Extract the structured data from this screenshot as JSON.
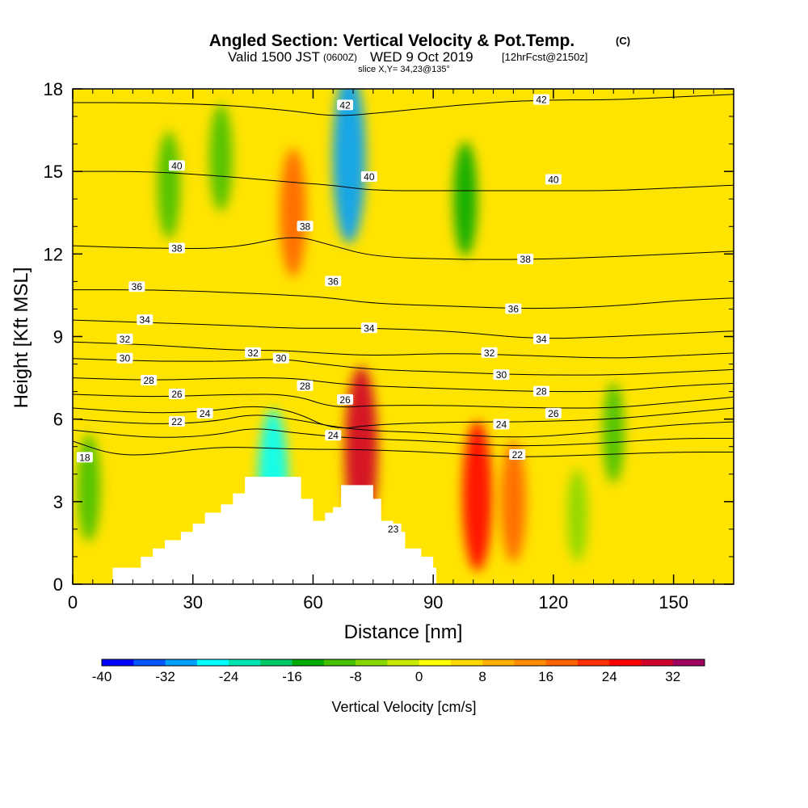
{
  "title": {
    "line1": "Angled Section: Vertical Velocity & Pot.Temp.",
    "line1_unit": "(C)",
    "line2_prefix": "Valid 1500 JST",
    "line2_zulu": "(0600Z)",
    "line2_date": "WED 9 Oct 2019",
    "line2_fcst": "[12hrFcst@2150z]",
    "line3": "slice X,Y= 34,23@135°"
  },
  "chart_data": {
    "type": "heatmap",
    "title": "Angled Section: Vertical Velocity & Pot.Temp. (C)",
    "xlabel": "Distance [nm]",
    "ylabel": "Height [Kft MSL]",
    "xlim": [
      0,
      165
    ],
    "ylim": [
      0,
      18
    ],
    "x_ticks": [
      "0",
      "30",
      "60",
      "90",
      "120",
      "150"
    ],
    "y_ticks": [
      "0",
      "3",
      "6",
      "9",
      "12",
      "15",
      "18"
    ],
    "colorbar": {
      "label": "Vertical Velocity [cm/s]",
      "ticks": [
        "-40",
        "-32",
        "-24",
        "-16",
        "-8",
        "0",
        "8",
        "16",
        "24",
        "32"
      ],
      "min": -40,
      "max": 36,
      "step": 4,
      "colors": [
        "#0000ff",
        "#0055ff",
        "#00a0ff",
        "#00ffff",
        "#00e6b0",
        "#00c864",
        "#00aa00",
        "#44c000",
        "#88d800",
        "#c8ea00",
        "#ffff00",
        "#ffd800",
        "#ffb000",
        "#ff8c00",
        "#ff6400",
        "#ff3000",
        "#ff0000",
        "#d0002a",
        "#a00060"
      ]
    },
    "vv_features": [
      {
        "name": "updraft over ridge",
        "x": 4,
        "y": 3.5,
        "value": -12
      },
      {
        "name": "downdraft lee wave",
        "x": 50,
        "y": 3.5,
        "value": -26
      },
      {
        "name": "strong updraft",
        "x": 72,
        "y": 4.8,
        "value": 30
      },
      {
        "name": "upper updraft band",
        "x": 55,
        "y": 13.5,
        "value": 18
      },
      {
        "name": "upper downdraft core",
        "x": 69,
        "y": 15.5,
        "value": -30
      },
      {
        "name": "green band",
        "x": 98,
        "y": 14.0,
        "value": -14
      },
      {
        "name": "lower updraft",
        "x": 101,
        "y": 3.2,
        "value": 24
      },
      {
        "name": "lower updraft 2",
        "x": 110,
        "y": 3.0,
        "value": 16
      },
      {
        "name": "weak downdraft",
        "x": 126,
        "y": 2.5,
        "value": -8
      },
      {
        "name": "weak downdraft 2",
        "x": 135,
        "y": 5.5,
        "value": -10
      },
      {
        "name": "weak downdraft 3",
        "x": 24,
        "y": 14.5,
        "value": -12
      },
      {
        "name": "weak downdraft 4",
        "x": 37,
        "y": 15.5,
        "value": -12
      }
    ],
    "terrain_heights_kft": [
      [
        10,
        0.6
      ],
      [
        17,
        1.0
      ],
      [
        20,
        1.3
      ],
      [
        23,
        1.6
      ],
      [
        27,
        1.9
      ],
      [
        30,
        2.2
      ],
      [
        33,
        2.6
      ],
      [
        37,
        2.9
      ],
      [
        40,
        3.3
      ],
      [
        43,
        3.9
      ],
      [
        53,
        3.9
      ],
      [
        57,
        3.1
      ],
      [
        60,
        2.3
      ],
      [
        63,
        2.6
      ],
      [
        65,
        2.8
      ],
      [
        67,
        3.6
      ],
      [
        73,
        3.6
      ],
      [
        75,
        3.1
      ],
      [
        77,
        2.3
      ],
      [
        80,
        1.9
      ],
      [
        83,
        1.3
      ],
      [
        87,
        1.0
      ],
      [
        90,
        0.6
      ]
    ],
    "theta_contours": [
      {
        "value": 18,
        "label": "18",
        "points": [
          [
            0,
            5.2
          ],
          [
            10,
            4.7
          ],
          [
            20,
            4.7
          ],
          [
            30,
            4.9
          ],
          [
            40,
            5.0
          ],
          [
            55,
            4.9
          ],
          [
            70,
            4.9
          ],
          [
            90,
            4.8
          ],
          [
            110,
            4.6
          ],
          [
            130,
            4.7
          ],
          [
            150,
            4.8
          ],
          [
            165,
            4.8
          ]
        ]
      },
      {
        "value": 20,
        "label": "",
        "points": [
          [
            0,
            5.6
          ],
          [
            20,
            5.3
          ],
          [
            35,
            5.4
          ],
          [
            45,
            5.7
          ],
          [
            55,
            5.5
          ],
          [
            70,
            5.3
          ],
          [
            90,
            5.2
          ],
          [
            110,
            5.0
          ],
          [
            130,
            5.1
          ],
          [
            150,
            5.3
          ],
          [
            165,
            5.3
          ]
        ]
      },
      {
        "value": 22,
        "label": "22",
        "points": [
          [
            0,
            6.0
          ],
          [
            20,
            5.8
          ],
          [
            35,
            5.9
          ],
          [
            45,
            6.2
          ],
          [
            55,
            6.0
          ],
          [
            70,
            5.6
          ],
          [
            90,
            5.5
          ],
          [
            110,
            5.3
          ],
          [
            130,
            5.5
          ],
          [
            150,
            5.8
          ],
          [
            165,
            5.9
          ]
        ]
      },
      {
        "value": 24,
        "label": "24",
        "points": [
          [
            0,
            6.4
          ],
          [
            20,
            6.2
          ],
          [
            35,
            6.3
          ],
          [
            45,
            6.5
          ],
          [
            55,
            6.3
          ],
          [
            65,
            5.6
          ],
          [
            75,
            5.8
          ],
          [
            95,
            5.9
          ],
          [
            115,
            5.9
          ],
          [
            135,
            6.0
          ],
          [
            150,
            6.2
          ],
          [
            165,
            6.4
          ]
        ]
      },
      {
        "value": 26,
        "label": "26",
        "points": [
          [
            0,
            6.9
          ],
          [
            20,
            6.8
          ],
          [
            40,
            6.9
          ],
          [
            55,
            6.9
          ],
          [
            65,
            6.4
          ],
          [
            75,
            6.5
          ],
          [
            95,
            6.5
          ],
          [
            115,
            6.4
          ],
          [
            135,
            6.4
          ],
          [
            150,
            6.6
          ],
          [
            165,
            6.8
          ]
        ]
      },
      {
        "value": 28,
        "label": "28",
        "points": [
          [
            0,
            7.5
          ],
          [
            20,
            7.4
          ],
          [
            40,
            7.5
          ],
          [
            55,
            7.5
          ],
          [
            65,
            7.3
          ],
          [
            75,
            7.2
          ],
          [
            95,
            7.1
          ],
          [
            115,
            7.0
          ],
          [
            135,
            7.0
          ],
          [
            150,
            7.2
          ],
          [
            165,
            7.3
          ]
        ]
      },
      {
        "value": 30,
        "label": "30",
        "points": [
          [
            0,
            8.2
          ],
          [
            20,
            8.1
          ],
          [
            40,
            8.1
          ],
          [
            52,
            8.2
          ],
          [
            62,
            8.0
          ],
          [
            75,
            7.8
          ],
          [
            95,
            7.7
          ],
          [
            115,
            7.6
          ],
          [
            135,
            7.6
          ],
          [
            150,
            7.7
          ],
          [
            165,
            7.8
          ]
        ]
      },
      {
        "value": 32,
        "label": "32",
        "points": [
          [
            0,
            8.8
          ],
          [
            20,
            8.7
          ],
          [
            40,
            8.5
          ],
          [
            52,
            8.5
          ],
          [
            62,
            8.4
          ],
          [
            75,
            8.3
          ],
          [
            95,
            8.4
          ],
          [
            115,
            8.3
          ],
          [
            135,
            8.2
          ],
          [
            150,
            8.3
          ],
          [
            165,
            8.4
          ]
        ]
      },
      {
        "value": 34,
        "label": "34",
        "points": [
          [
            0,
            9.6
          ],
          [
            20,
            9.5
          ],
          [
            40,
            9.4
          ],
          [
            55,
            9.3
          ],
          [
            65,
            9.3
          ],
          [
            75,
            9.3
          ],
          [
            95,
            9.2
          ],
          [
            115,
            8.9
          ],
          [
            135,
            9.0
          ],
          [
            150,
            9.1
          ],
          [
            165,
            9.2
          ]
        ]
      },
      {
        "value": 36,
        "label": "36",
        "points": [
          [
            0,
            10.7
          ],
          [
            20,
            10.7
          ],
          [
            40,
            10.6
          ],
          [
            55,
            10.5
          ],
          [
            65,
            10.4
          ],
          [
            75,
            10.2
          ],
          [
            95,
            10.1
          ],
          [
            115,
            10.0
          ],
          [
            135,
            10.1
          ],
          [
            150,
            10.3
          ],
          [
            165,
            10.4
          ]
        ]
      },
      {
        "value": 38,
        "label": "38",
        "points": [
          [
            0,
            12.3
          ],
          [
            20,
            12.2
          ],
          [
            40,
            12.2
          ],
          [
            55,
            12.7
          ],
          [
            65,
            12.3
          ],
          [
            75,
            11.9
          ],
          [
            95,
            11.8
          ],
          [
            115,
            11.8
          ],
          [
            135,
            11.9
          ],
          [
            150,
            12.0
          ],
          [
            165,
            12.1
          ]
        ]
      },
      {
        "value": 40,
        "label": "40",
        "points": [
          [
            0,
            15.0
          ],
          [
            20,
            15.0
          ],
          [
            40,
            14.8
          ],
          [
            55,
            14.6
          ],
          [
            65,
            14.5
          ],
          [
            75,
            14.3
          ],
          [
            95,
            14.3
          ],
          [
            115,
            14.3
          ],
          [
            135,
            14.3
          ],
          [
            150,
            14.4
          ],
          [
            165,
            14.5
          ]
        ]
      },
      {
        "value": 42,
        "label": "42",
        "points": [
          [
            0,
            17.5
          ],
          [
            20,
            17.5
          ],
          [
            40,
            17.4
          ],
          [
            55,
            17.2
          ],
          [
            65,
            17.0
          ],
          [
            75,
            17.1
          ],
          [
            95,
            17.4
          ],
          [
            115,
            17.6
          ],
          [
            135,
            17.6
          ],
          [
            150,
            17.7
          ],
          [
            165,
            17.8
          ]
        ]
      }
    ],
    "contour_labels": [
      {
        "text": "42",
        "x": 68,
        "y": 17.4
      },
      {
        "text": "42",
        "x": 117,
        "y": 17.6
      },
      {
        "text": "40",
        "x": 26,
        "y": 15.2
      },
      {
        "text": "40",
        "x": 74,
        "y": 14.8
      },
      {
        "text": "40",
        "x": 120,
        "y": 14.7
      },
      {
        "text": "38",
        "x": 26,
        "y": 12.2
      },
      {
        "text": "38",
        "x": 58,
        "y": 13.0
      },
      {
        "text": "38",
        "x": 113,
        "y": 11.8
      },
      {
        "text": "36",
        "x": 16,
        "y": 10.8
      },
      {
        "text": "36",
        "x": 65,
        "y": 11.0
      },
      {
        "text": "36",
        "x": 110,
        "y": 10.0
      },
      {
        "text": "34",
        "x": 18,
        "y": 9.6
      },
      {
        "text": "34",
        "x": 74,
        "y": 9.3
      },
      {
        "text": "34",
        "x": 117,
        "y": 8.9
      },
      {
        "text": "32",
        "x": 13,
        "y": 8.9
      },
      {
        "text": "32",
        "x": 45,
        "y": 8.4
      },
      {
        "text": "32",
        "x": 104,
        "y": 8.4
      },
      {
        "text": "30",
        "x": 13,
        "y": 8.2
      },
      {
        "text": "30",
        "x": 52,
        "y": 8.2
      },
      {
        "text": "30",
        "x": 107,
        "y": 7.6
      },
      {
        "text": "28",
        "x": 19,
        "y": 7.4
      },
      {
        "text": "28",
        "x": 58,
        "y": 7.2
      },
      {
        "text": "28",
        "x": 117,
        "y": 7.0
      },
      {
        "text": "26",
        "x": 26,
        "y": 6.9
      },
      {
        "text": "26",
        "x": 68,
        "y": 6.7
      },
      {
        "text": "26",
        "x": 120,
        "y": 6.2
      },
      {
        "text": "24",
        "x": 33,
        "y": 6.2
      },
      {
        "text": "24",
        "x": 65,
        "y": 5.4
      },
      {
        "text": "24",
        "x": 107,
        "y": 5.8
      },
      {
        "text": "22",
        "x": 26,
        "y": 5.9
      },
      {
        "text": "22",
        "x": 111,
        "y": 4.7
      },
      {
        "text": "23",
        "x": 80,
        "y": 2.0
      },
      {
        "text": "18",
        "x": 3,
        "y": 4.6
      }
    ]
  }
}
